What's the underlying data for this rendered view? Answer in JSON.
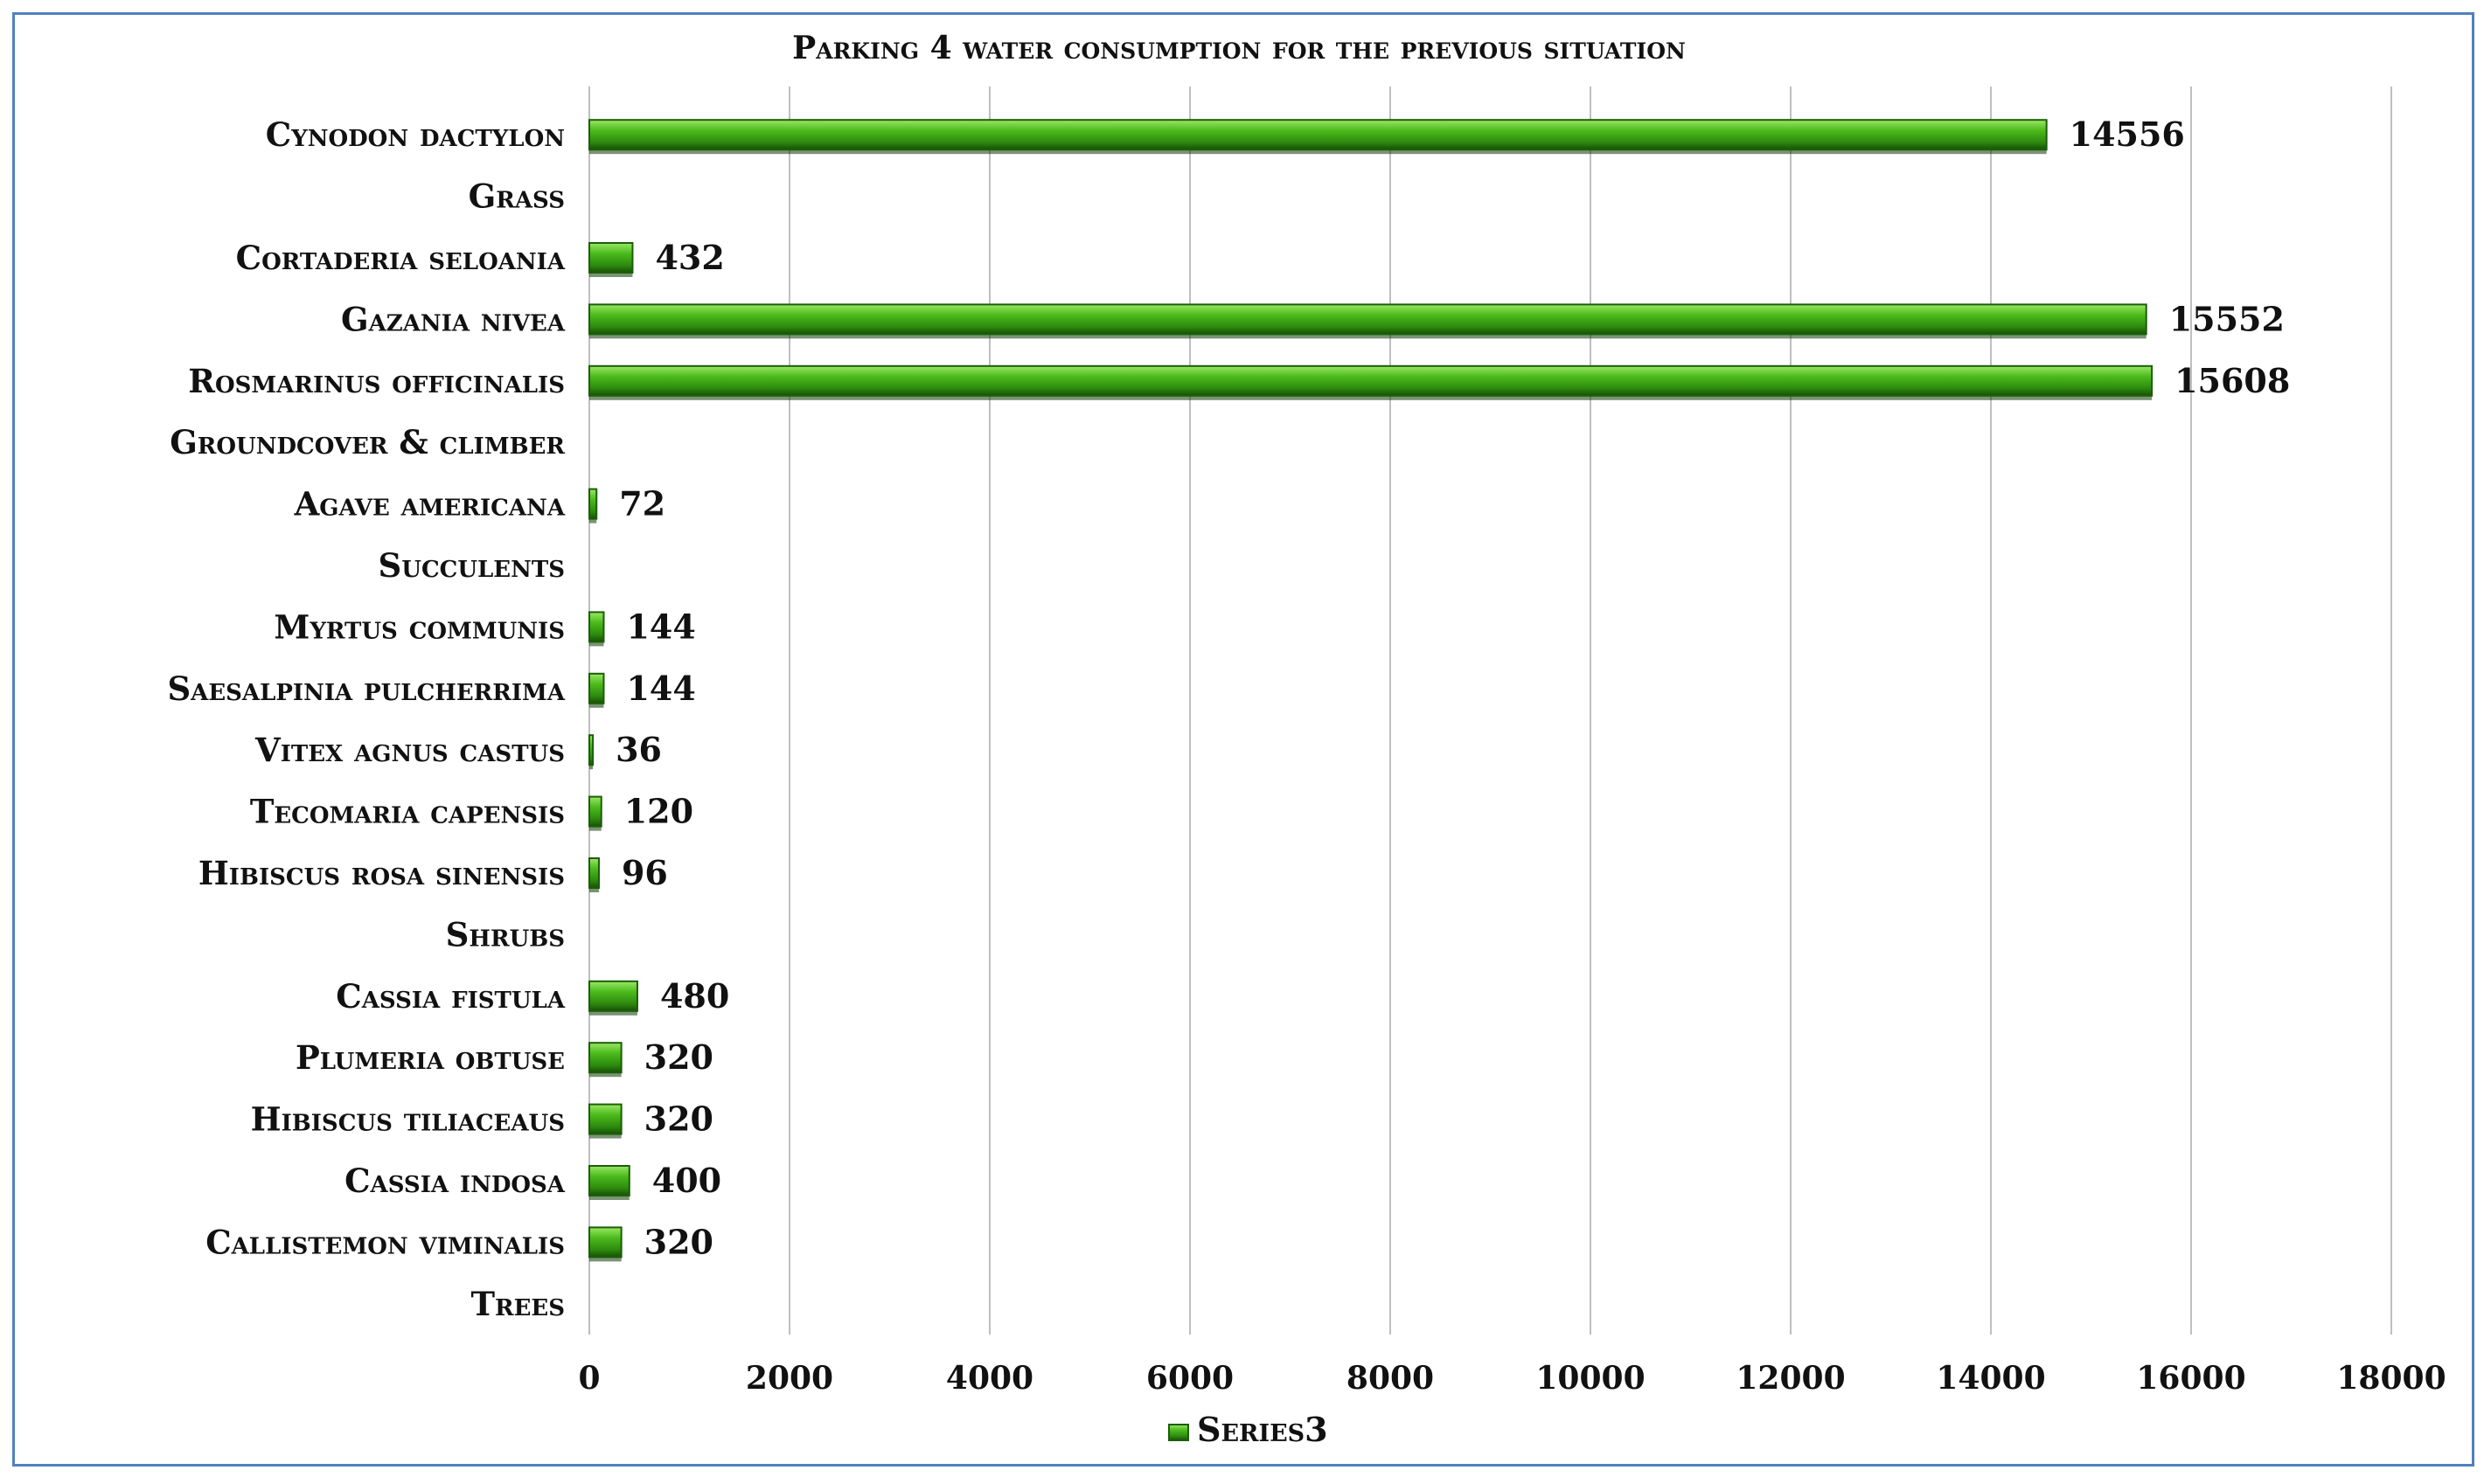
{
  "chart_data": {
    "type": "bar",
    "orientation": "horizontal",
    "title": "Parking 4 water consumption for the previous situation",
    "categories": [
      "Cynodon dactylon",
      "Grass",
      "Cortaderia seloania",
      "Gazania nivea",
      "Rosmarinus officinalis",
      "Groundcover & climber",
      "Agave americana",
      "Succulents",
      "Myrtus communis",
      "Saesalpinia pulcherrima",
      "Vitex agnus castus",
      "Tecomaria capensis",
      "Hibiscus rosa sinensis",
      "Shrubs",
      "Cassia fistula",
      "Plumeria obtuse",
      "Hibiscus tiliaceaus",
      "Cassia indosa",
      "Callistemon viminalis",
      "Trees"
    ],
    "series": [
      {
        "name": "Series3",
        "values": [
          14556,
          null,
          432,
          15552,
          15608,
          null,
          72,
          null,
          144,
          144,
          36,
          120,
          96,
          null,
          480,
          320,
          320,
          400,
          320,
          null
        ],
        "data_labels": [
          "14556",
          "",
          "432",
          "15552",
          "15608",
          "",
          "72",
          "",
          "144",
          "144",
          "36",
          "120",
          "96",
          "",
          "480",
          "320",
          "320",
          "400",
          "320",
          ""
        ]
      }
    ],
    "x_ticks": [
      "0",
      "2000",
      "4000",
      "6000",
      "8000",
      "10000",
      "12000",
      "14000",
      "16000",
      "18000"
    ],
    "xlim": [
      0,
      18000
    ],
    "grid": "vertical",
    "legend": "bottom-center",
    "colors": {
      "bar": "#3aa012",
      "bar_dark": "#1b5e08",
      "bar_light": "#8fe058",
      "grid": "#bfbfbf",
      "frame": "#4f81bd"
    }
  }
}
